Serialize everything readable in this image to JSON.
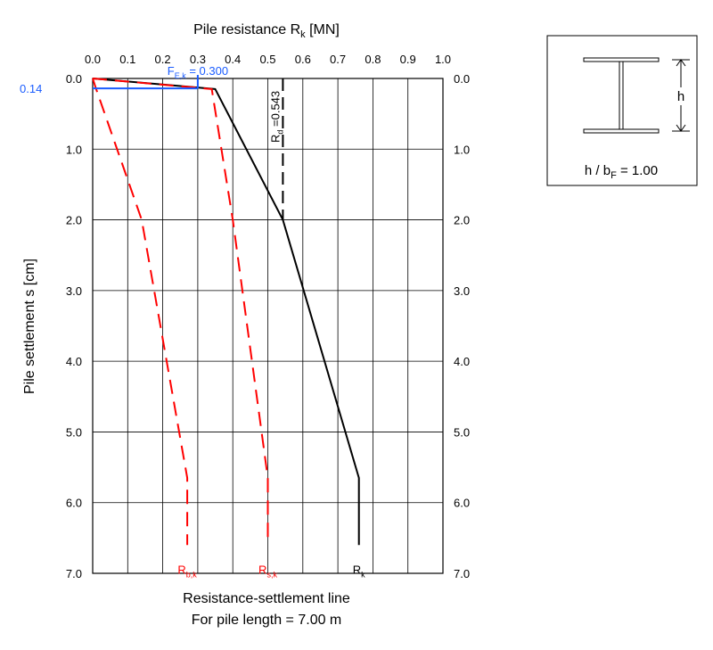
{
  "chart_data": {
    "type": "line",
    "title": "Resistance-settlement line",
    "subtitle": "For pile length = 7.00 m",
    "xlabel": {
      "main": "Pile resistance R",
      "sub": "k",
      "tail": " [MN]"
    },
    "ylabel": "Pile settlement s [cm]",
    "xlim": [
      0,
      1.0
    ],
    "ylim": [
      0,
      7.0
    ],
    "y_inverted": true,
    "x_axis_position": "top",
    "y_axis_position": "both",
    "grid": true,
    "x_ticks": [
      "0.0",
      "0.1",
      "0.2",
      "0.3",
      "0.4",
      "0.5",
      "0.6",
      "0.7",
      "0.8",
      "0.9",
      "1.0"
    ],
    "y_ticks": [
      "0.0",
      "1.0",
      "2.0",
      "3.0",
      "4.0",
      "5.0",
      "6.0",
      "7.0"
    ],
    "series": [
      {
        "name": {
          "main": "R",
          "sub": "k"
        },
        "color": "#000000",
        "style": "solid",
        "points": [
          [
            0,
            0
          ],
          [
            0.35,
            0.15
          ],
          [
            0.543,
            2.0
          ],
          [
            0.76,
            5.65
          ],
          [
            0.76,
            6.6
          ]
        ]
      },
      {
        "name": {
          "main": "R",
          "sub": "s,k"
        },
        "color": "#ff0000",
        "style": "dashed",
        "points": [
          [
            0,
            0
          ],
          [
            0.34,
            0.15
          ],
          [
            0.4,
            2.0
          ],
          [
            0.5,
            5.65
          ],
          [
            0.5,
            6.6
          ]
        ]
      },
      {
        "name": {
          "main": "R",
          "sub": "b,k"
        },
        "color": "#ff0000",
        "style": "dashed",
        "points": [
          [
            0,
            0
          ],
          [
            0.01,
            0.15
          ],
          [
            0.14,
            2.0
          ],
          [
            0.27,
            5.65
          ],
          [
            0.27,
            6.6
          ]
        ]
      }
    ],
    "annotations": {
      "fek": {
        "label_main": "F",
        "label_sub": "E,k",
        "label_tail": " = 0.300",
        "x": 0.3,
        "y": 0.14,
        "y_label": "0.14",
        "color": "#1a5cff"
      },
      "rd": {
        "label_main": "R",
        "label_sub": "d",
        "label_tail": " =0.543",
        "x": 0.543,
        "y_from": 0,
        "y_to": 2.0,
        "color": "#000000"
      }
    }
  },
  "inset": {
    "h_label": "h",
    "ratio": {
      "main": "h / b",
      "sub": "F",
      "tail": " = 1.00"
    }
  }
}
